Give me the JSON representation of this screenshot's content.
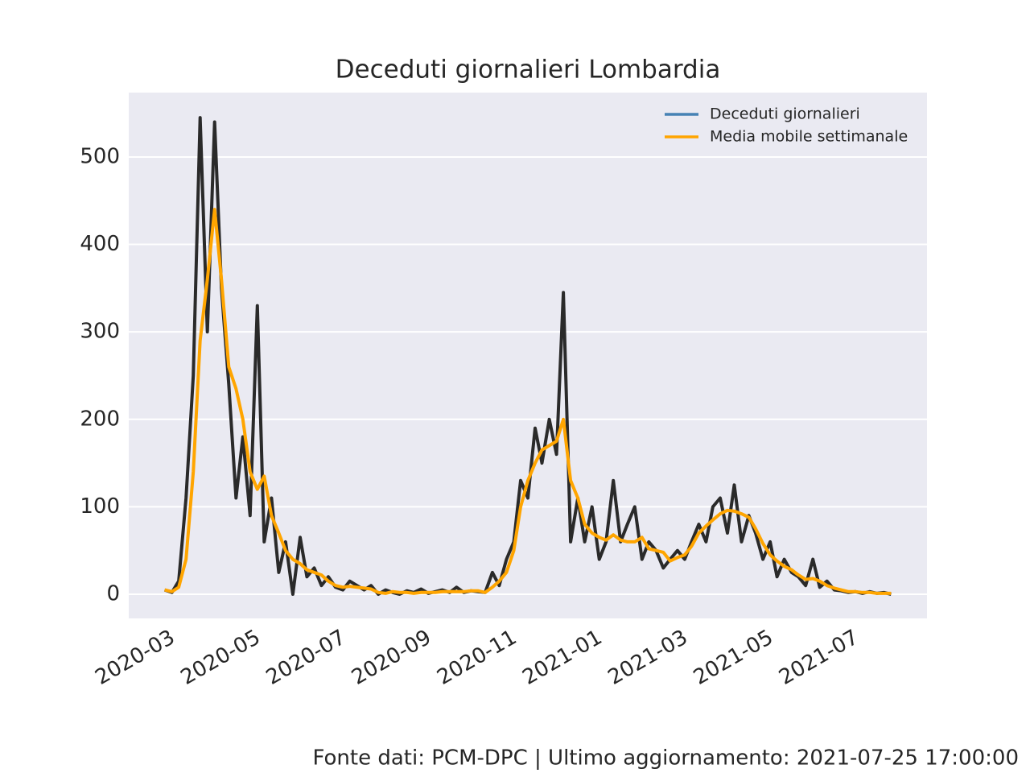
{
  "chart_data": {
    "type": "line",
    "title": "Deceduti giornalieri Lombardia",
    "source": "Fonte dati: PCM-DPC | Ultimo aggiornamento: 2021-07-25 17:00:00",
    "x": [
      -0.2,
      -0.03,
      0.13,
      0.3,
      0.47,
      0.63,
      0.8,
      0.97,
      1.13,
      1.3,
      1.47,
      1.63,
      1.8,
      1.97,
      2.13,
      2.3,
      2.47,
      2.63,
      2.8,
      2.97,
      3.13,
      3.3,
      3.47,
      3.63,
      3.8,
      3.97,
      4.13,
      4.3,
      4.47,
      4.63,
      4.8,
      4.97,
      5.13,
      5.3,
      5.47,
      5.63,
      5.8,
      5.97,
      6.13,
      6.3,
      6.47,
      6.63,
      6.8,
      6.97,
      7.13,
      7.3,
      7.47,
      7.63,
      7.8,
      7.97,
      8.13,
      8.3,
      8.47,
      8.63,
      8.8,
      8.97,
      9.13,
      9.3,
      9.47,
      9.63,
      9.8,
      9.97,
      10.13,
      10.3,
      10.47,
      10.63,
      10.8,
      10.97,
      11.13,
      11.3,
      11.47,
      11.63,
      11.8,
      11.97,
      12.13,
      12.3,
      12.47,
      12.63,
      12.8,
      12.97,
      13.13,
      13.3,
      13.47,
      13.63,
      13.8,
      13.97,
      14.13,
      14.3,
      14.47,
      14.63,
      14.8,
      14.97,
      15.13,
      15.3,
      15.47,
      15.63,
      15.8,
      15.97,
      16.13,
      16.3,
      16.47,
      16.63,
      16.8
    ],
    "series": [
      {
        "name": "Deceduti giornalieri",
        "color": "#4682b4",
        "line_color": "#2a2a2a",
        "values": [
          5,
          2,
          15,
          110,
          250,
          545,
          300,
          540,
          350,
          240,
          110,
          180,
          90,
          330,
          60,
          110,
          25,
          60,
          0,
          65,
          20,
          30,
          10,
          20,
          8,
          5,
          15,
          10,
          5,
          10,
          0,
          5,
          2,
          0,
          4,
          2,
          6,
          1,
          3,
          5,
          2,
          8,
          2,
          4,
          3,
          2,
          25,
          10,
          40,
          60,
          130,
          110,
          190,
          150,
          200,
          160,
          345,
          60,
          110,
          60,
          100,
          40,
          60,
          130,
          60,
          80,
          100,
          40,
          60,
          50,
          30,
          40,
          50,
          40,
          60,
          80,
          60,
          100,
          110,
          70,
          125,
          60,
          90,
          70,
          40,
          60,
          20,
          40,
          25,
          20,
          10,
          40,
          8,
          15,
          5,
          4,
          2,
          3,
          1,
          3,
          1,
          2,
          0
        ]
      },
      {
        "name": "Media mobile settimanale",
        "color": "#ffa500",
        "values": [
          5,
          3,
          8,
          40,
          140,
          290,
          360,
          440,
          360,
          260,
          235,
          200,
          140,
          120,
          135,
          90,
          70,
          50,
          40,
          35,
          28,
          25,
          22,
          15,
          10,
          8,
          9,
          8,
          7,
          6,
          2,
          1,
          3,
          2,
          2,
          1,
          2,
          2,
          2,
          3,
          3,
          3,
          3,
          4,
          4,
          2,
          8,
          15,
          25,
          50,
          100,
          130,
          150,
          165,
          170,
          175,
          200,
          130,
          110,
          80,
          70,
          65,
          62,
          68,
          62,
          60,
          60,
          65,
          52,
          50,
          48,
          38,
          42,
          45,
          55,
          70,
          78,
          85,
          92,
          96,
          95,
          92,
          88,
          75,
          58,
          45,
          38,
          32,
          28,
          22,
          17,
          18,
          15,
          10,
          7,
          5,
          3,
          3,
          2,
          2,
          1,
          1,
          1
        ]
      }
    ],
    "xlim": [
      -1.04,
      17.64
    ],
    "ylim": [
      -27.6,
      573.6
    ],
    "xticks": [
      {
        "value": 0,
        "label": "2020-03"
      },
      {
        "value": 2,
        "label": "2020-05"
      },
      {
        "value": 4,
        "label": "2020-07"
      },
      {
        "value": 6,
        "label": "2020-09"
      },
      {
        "value": 8,
        "label": "2020-11"
      },
      {
        "value": 10,
        "label": "2021-01"
      },
      {
        "value": 12,
        "label": "2021-03"
      },
      {
        "value": 14,
        "label": "2021-05"
      },
      {
        "value": 16,
        "label": "2021-07"
      }
    ],
    "yticks": [
      0,
      100,
      200,
      300,
      400,
      500
    ],
    "grid": true,
    "legend": "upper-right"
  }
}
